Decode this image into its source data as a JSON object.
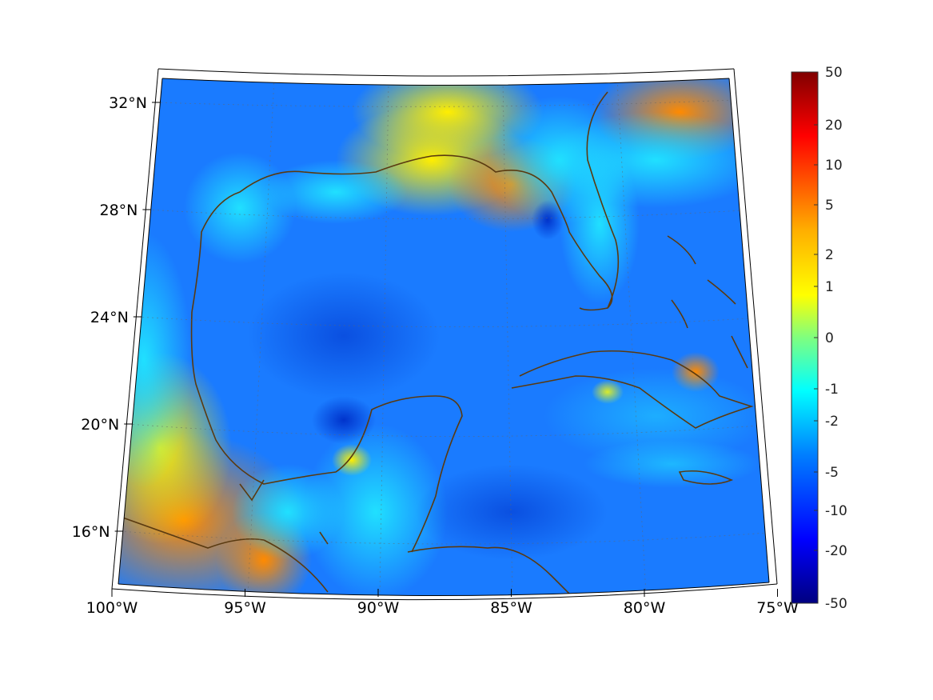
{
  "map": {
    "projection": "conic",
    "region": "Gulf of Mexico and western Caribbean",
    "lon_range": [
      -100,
      -75
    ],
    "lat_range": [
      14,
      33
    ],
    "lat_ticks": [
      {
        "value": 32,
        "label": "32°N"
      },
      {
        "value": 28,
        "label": "28°N"
      },
      {
        "value": 24,
        "label": "24°N"
      },
      {
        "value": 20,
        "label": "20°N"
      },
      {
        "value": 16,
        "label": "16°N"
      }
    ],
    "lon_ticks": [
      {
        "value": -100,
        "label": "100°W"
      },
      {
        "value": -95,
        "label": "95°W"
      },
      {
        "value": -90,
        "label": "90°W"
      },
      {
        "value": -85,
        "label": "85°W"
      },
      {
        "value": -80,
        "label": "80°W"
      },
      {
        "value": -75,
        "label": "75°W"
      }
    ],
    "grid": "dotted",
    "coastline_color": "#5a3a10",
    "field_description": "scalar field; mostly negative over open water (blue), positive near coasts (yellow/orange)"
  },
  "colorbar": {
    "colormap": "jet",
    "scale": "nonlinear",
    "ticks": [
      "50",
      "20",
      "10",
      "5",
      "2",
      "1",
      "0",
      "-1",
      "-2",
      "-5",
      "-10",
      "-20",
      "-50"
    ],
    "colors": [
      "#800000",
      "#ff0000",
      "#ff7f00",
      "#ffff00",
      "#7fff7f",
      "#00ffff",
      "#007fff",
      "#0000ff",
      "#000080"
    ]
  }
}
